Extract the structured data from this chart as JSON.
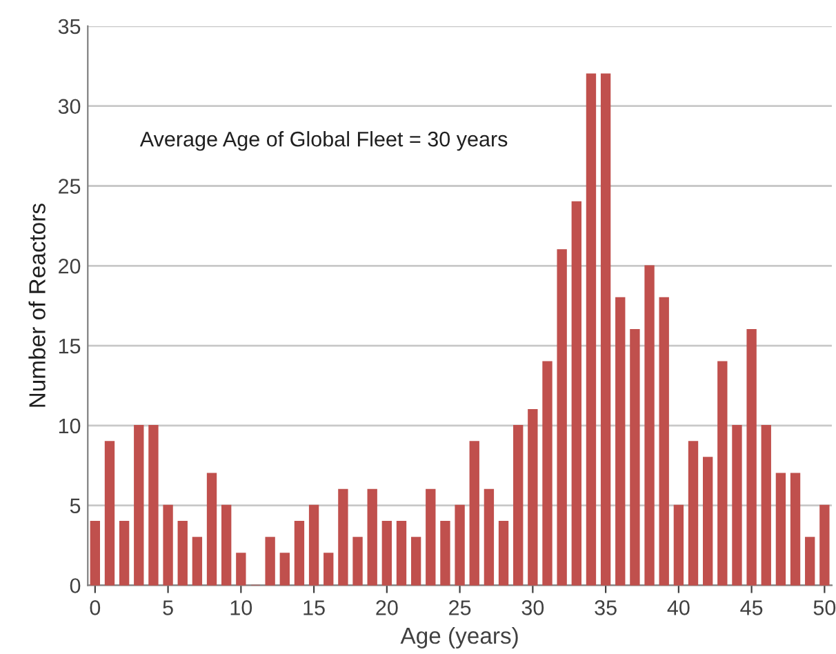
{
  "chart_data": {
    "type": "bar",
    "xlabel": "Age (years)",
    "ylabel": "Number of Reactors",
    "annotations": [
      "Average Age of Global Fleet = 30 years"
    ],
    "x": [
      0,
      1,
      2,
      3,
      4,
      5,
      6,
      7,
      8,
      9,
      10,
      11,
      12,
      13,
      14,
      15,
      16,
      17,
      18,
      19,
      20,
      21,
      22,
      23,
      24,
      25,
      26,
      27,
      28,
      29,
      30,
      31,
      32,
      33,
      34,
      35,
      36,
      37,
      38,
      39,
      40,
      41,
      42,
      43,
      44,
      45,
      46,
      47,
      48,
      49,
      50
    ],
    "values": [
      4,
      9,
      4,
      10,
      10,
      5,
      4,
      3,
      7,
      5,
      2,
      0,
      3,
      2,
      4,
      5,
      2,
      6,
      3,
      6,
      4,
      4,
      3,
      6,
      4,
      5,
      9,
      6,
      4,
      10,
      11,
      14,
      21,
      24,
      32,
      32,
      18,
      16,
      20,
      18,
      5,
      9,
      8,
      14,
      10,
      16,
      10,
      7,
      7,
      3,
      5
    ],
    "color": "#c0504d",
    "xlim": [
      -0.5,
      50.5
    ],
    "xticks": [
      0,
      5,
      10,
      15,
      20,
      25,
      30,
      35,
      40,
      45,
      50
    ],
    "ylim": [
      0,
      35
    ],
    "yticks": [
      0,
      5,
      10,
      15,
      20,
      25,
      30,
      35
    ],
    "grid": "y",
    "legend": false
  }
}
